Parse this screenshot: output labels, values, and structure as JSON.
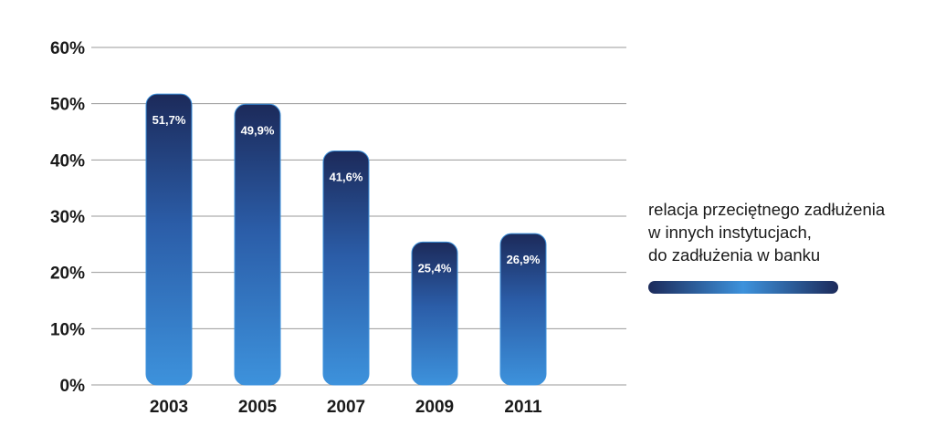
{
  "chart_data": {
    "type": "bar",
    "categories": [
      "2003",
      "2005",
      "2007",
      "2009",
      "2011"
    ],
    "values": [
      51.7,
      49.9,
      41.6,
      25.4,
      26.9
    ],
    "value_labels": [
      "51,7%",
      "49,9%",
      "41,6%",
      "25,4%",
      "26,9%"
    ],
    "y_ticks": [
      "0%",
      "10%",
      "20%",
      "30%",
      "40%",
      "50%",
      "60%"
    ],
    "ylim": [
      0,
      60
    ],
    "grid": true,
    "legend_position": "right",
    "series": [
      {
        "name": "relacja przeciętnego zadłużenia w innych instytucjach, do zadłużenia w banku"
      }
    ],
    "colors": {
      "bar_top": "#1c2a5a",
      "bar_bottom": "#3d92dc",
      "grid": "#9a9a9a",
      "text": "#1a1a1a"
    }
  },
  "legend": {
    "lines": [
      "relacja przeciętnego zadłużenia",
      "w innych instytucjach,",
      "do zadłużenia w banku"
    ]
  }
}
